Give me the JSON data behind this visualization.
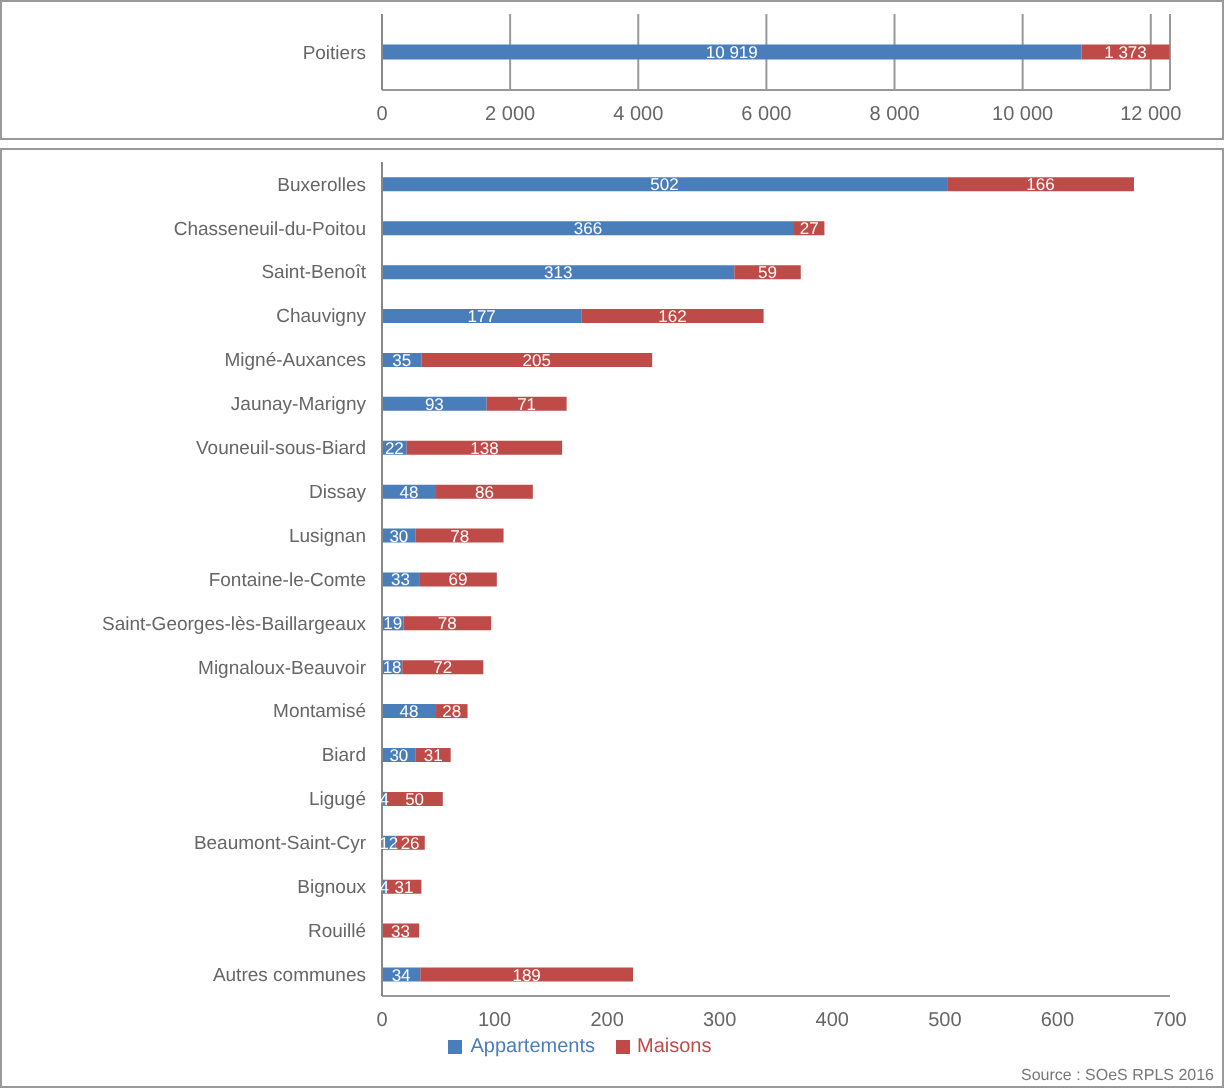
{
  "chart_data": [
    {
      "type": "bar",
      "orientation": "horizontal",
      "stacked": true,
      "categories": [
        "Poitiers"
      ],
      "series": [
        {
          "color": "#4a7ebb",
          "values": [
            10919
          ],
          "value_labels": [
            "10 919"
          ]
        },
        {
          "color": "#be4b48",
          "values": [
            1373
          ],
          "value_labels": [
            "1 373"
          ]
        }
      ],
      "xlim": [
        0,
        12300
      ],
      "xticks": [
        0,
        {
          "value": 2000,
          "label": "2 000"
        },
        {
          "value": 4000,
          "label": "4 000"
        },
        {
          "value": 6000,
          "label": "6 000"
        },
        {
          "value": 8000,
          "label": "8 000"
        },
        {
          "value": 10000,
          "label": "10 000"
        },
        {
          "value": 12000,
          "label": "12 000"
        }
      ],
      "grid": "x",
      "legend": false
    },
    {
      "type": "bar",
      "orientation": "horizontal",
      "stacked": true,
      "categories": [
        "Buxerolles",
        "Chasseneuil-du-Poitou",
        "Saint-Benoît",
        "Chauvigny",
        "Migné-Auxances",
        "Jaunay-Marigny",
        "Vouneuil-sous-Biard",
        "Dissay",
        "Lusignan",
        "Fontaine-le-Comte",
        "Saint-Georges-lès-Baillargeaux",
        "Mignaloux-Beauvoir",
        "Montamisé",
        "Biard",
        "Ligugé",
        "Beaumont-Saint-Cyr",
        "Bignoux",
        "Rouillé",
        "Autres communes"
      ],
      "series": [
        {
          "name": "Appartements",
          "color": "#4a7ebb",
          "values": [
            502,
            366,
            313,
            177,
            35,
            93,
            22,
            48,
            30,
            33,
            19,
            18,
            48,
            30,
            4,
            12,
            4,
            null,
            34
          ]
        },
        {
          "name": "Maisons",
          "color": "#be4b48",
          "values": [
            166,
            27,
            59,
            162,
            205,
            71,
            138,
            86,
            78,
            69,
            78,
            72,
            28,
            31,
            50,
            26,
            31,
            33,
            189
          ]
        }
      ],
      "xlim": [
        0,
        700
      ],
      "xticks": [
        0,
        100,
        200,
        300,
        400,
        500,
        600,
        700
      ],
      "data_labels": true,
      "grid": false,
      "legend": "bottom",
      "annotations": [
        "Source : SOeS RPLS 2016"
      ]
    }
  ]
}
